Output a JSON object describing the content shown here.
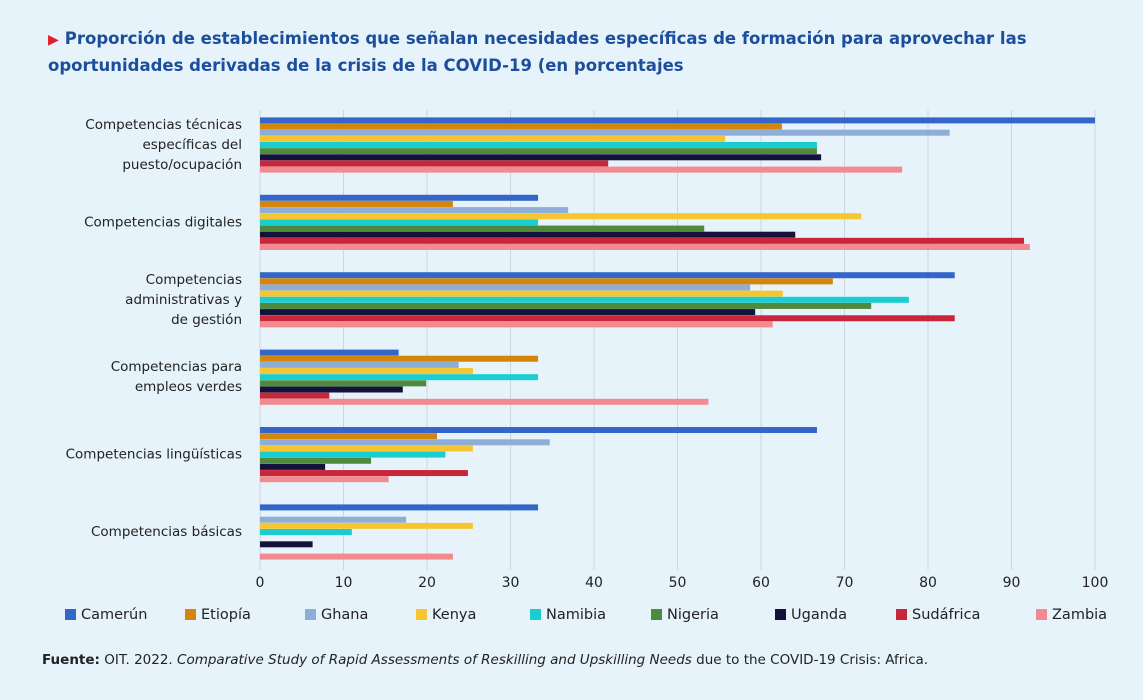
{
  "chart_data": {
    "type": "hbar",
    "title": "Proporción de establecimientos que señalan necesidades específicas de formación para aprovechar las oportunidades derivadas de la crisis de la COVID-19 (en porcentajes",
    "categories": [
      [
        "Competencias técnicas",
        "específicas del",
        "puesto/ocupación"
      ],
      [
        "Competencias digitales"
      ],
      [
        "Competencias",
        "administrativas y",
        "de gestión"
      ],
      [
        "Competencias para",
        "empleos verdes"
      ],
      [
        "Competencias lingüísticas"
      ],
      [
        "Competencias básicas"
      ]
    ],
    "series": [
      {
        "name": "Camerún",
        "color": "#3465c8",
        "values": [
          100,
          33.3,
          83.2,
          16.6,
          66.7,
          33.3
        ]
      },
      {
        "name": "Etiopía",
        "color": "#d4860b",
        "values": [
          62.5,
          23.1,
          68.6,
          33.3,
          21.2,
          null
        ]
      },
      {
        "name": "Ghana",
        "color": "#8eaed8",
        "values": [
          82.6,
          36.9,
          58.7,
          23.8,
          34.7,
          17.5
        ]
      },
      {
        "name": "Kenya",
        "color": "#f5c62f",
        "values": [
          55.7,
          72,
          62.6,
          25.5,
          25.5,
          25.5
        ]
      },
      {
        "name": "Namibia",
        "color": "#19cdd0",
        "values": [
          66.7,
          33.3,
          77.7,
          33.3,
          22.2,
          11
        ]
      },
      {
        "name": "Nigeria",
        "color": "#4e8a3e",
        "values": [
          66.7,
          53.2,
          73.2,
          19.9,
          13.3,
          null
        ]
      },
      {
        "name": "Uganda",
        "color": "#14123a",
        "values": [
          67.2,
          64.1,
          59.3,
          17.1,
          7.8,
          6.3
        ]
      },
      {
        "name": "Sudáfrica",
        "color": "#c8273b",
        "values": [
          41.7,
          91.5,
          83.2,
          8.3,
          24.9,
          null
        ]
      },
      {
        "name": "Zambia",
        "color": "#f28b8f",
        "values": [
          76.9,
          92.2,
          61.4,
          53.7,
          15.4,
          23.1
        ]
      }
    ],
    "xlim": [
      0,
      100
    ],
    "xticks": [
      0,
      10,
      20,
      30,
      40,
      50,
      60,
      70,
      80,
      90,
      100
    ],
    "grid": true,
    "legend": "bottom",
    "source": {
      "label": "Fuente:",
      "text1": " OIT. 2022. ",
      "italic": "Comparative Study of Rapid Assessments of Reskilling and Upskilling Needs",
      "text2": " due to the COVID-19 Crisis: Africa."
    }
  }
}
